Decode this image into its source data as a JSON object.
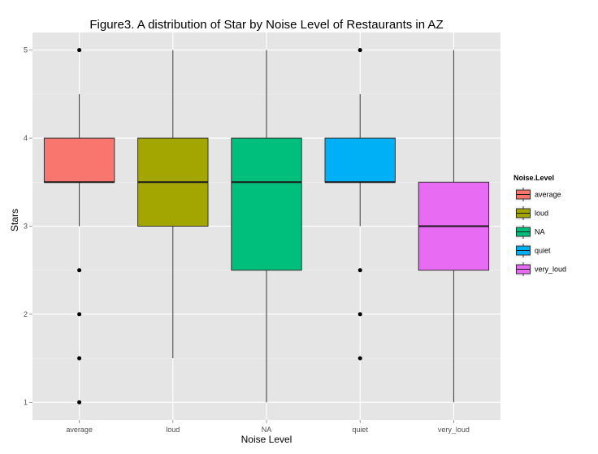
{
  "chart_data": {
    "type": "box",
    "title": "Figure3. A distribution of Star by Noise Level of Restaurants in AZ",
    "xlabel": "Noise Level",
    "ylabel": "Stars",
    "ylim": [
      0.8,
      5.2
    ],
    "yticks": [
      1,
      2,
      3,
      4,
      5
    ],
    "grid": true,
    "legend": {
      "title": "Noise.Level",
      "position": "right"
    },
    "categories": [
      "average",
      "loud",
      "NA",
      "quiet",
      "very_loud"
    ],
    "colors": [
      "#F8766D",
      "#A3A500",
      "#00BF7D",
      "#00B0F6",
      "#E76BF3"
    ],
    "boxes": [
      {
        "category": "average",
        "min": 3.0,
        "q1": 3.5,
        "median": 3.5,
        "q3": 4.0,
        "max": 4.5,
        "outliers": [
          1.0,
          1.5,
          2.0,
          2.5,
          5.0
        ]
      },
      {
        "category": "loud",
        "min": 1.5,
        "q1": 3.0,
        "median": 3.5,
        "q3": 4.0,
        "max": 5.0,
        "outliers": []
      },
      {
        "category": "NA",
        "min": 1.0,
        "q1": 2.5,
        "median": 3.5,
        "q3": 4.0,
        "max": 5.0,
        "outliers": []
      },
      {
        "category": "quiet",
        "min": 3.0,
        "q1": 3.5,
        "median": 3.5,
        "q3": 4.0,
        "max": 4.5,
        "outliers": [
          1.5,
          2.0,
          2.5,
          5.0
        ]
      },
      {
        "category": "very_loud",
        "min": 1.0,
        "q1": 2.5,
        "median": 3.0,
        "q3": 3.5,
        "max": 5.0,
        "outliers": []
      }
    ]
  }
}
